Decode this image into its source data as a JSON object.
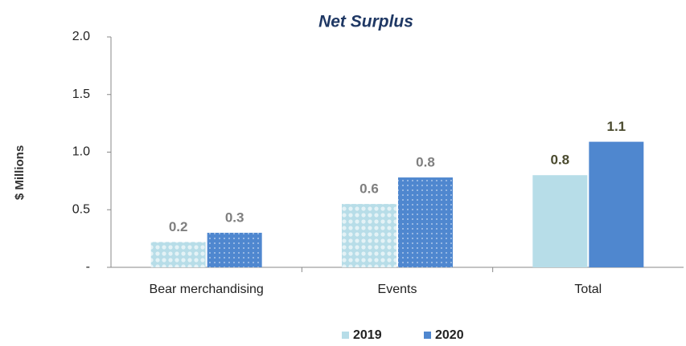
{
  "chart_data": {
    "type": "bar",
    "title": "Net Surplus",
    "y_label": "$ Millions",
    "categories": [
      "Bear merchandising",
      "Events",
      "Total"
    ],
    "series": [
      {
        "name": "2019",
        "color": "#b7dde8",
        "values": [
          0.22,
          0.55,
          0.8
        ],
        "value_labels": [
          "0.2",
          "0.6",
          "0.8"
        ]
      },
      {
        "name": "2020",
        "color": "#4f87cf",
        "values": [
          0.3,
          0.78,
          1.09
        ],
        "value_labels": [
          "0.3",
          "0.8",
          "1.1"
        ]
      }
    ],
    "hatched": [
      true,
      true,
      false
    ],
    "ylim": [
      0,
      2
    ],
    "yticks": [
      {
        "value": 0,
        "label": "-"
      },
      0.5,
      {
        "value": 1,
        "label": "1.0"
      },
      1.5,
      {
        "value": 2,
        "label": "2.0"
      }
    ],
    "legend": "bottom"
  }
}
